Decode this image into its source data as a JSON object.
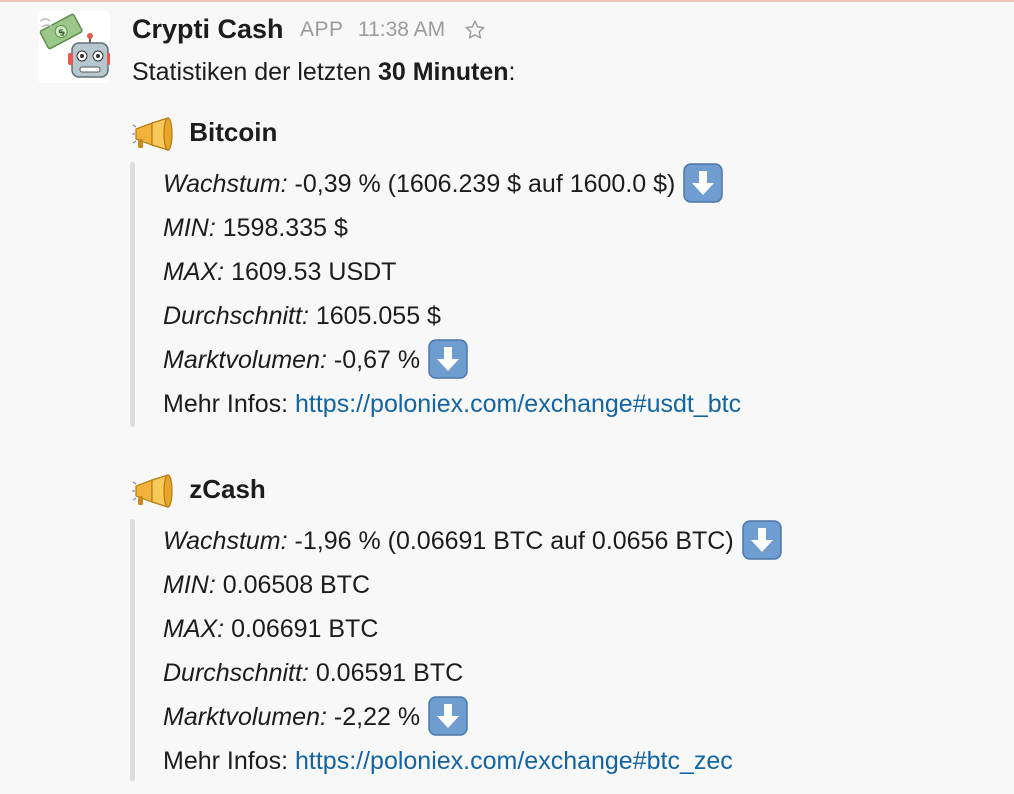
{
  "message": {
    "sender": "Crypti Cash",
    "badge": "APP",
    "time": "11:38 AM",
    "intro_prefix": "Statistiken der letzten ",
    "intro_bold": "30 Minuten",
    "intro_suffix": ":"
  },
  "icons": {
    "avatar": "money-robot-icon",
    "star": "star-outline-icon",
    "megaphone": "megaphone-icon",
    "down_arrow": "down-arrow-icon"
  },
  "colors": {
    "link": "#1264a3",
    "attachment_bar": "#dddddd",
    "arrow_bg": "#6f9dcf"
  },
  "coins": [
    {
      "name": "Bitcoin",
      "growth_label": "Wachstum:",
      "growth_value": " -0,39 % (1606.239 $ auf 1600.0 $)",
      "min_label": "MIN:",
      "min_value": " 1598.335 $",
      "max_label": "MAX:",
      "max_value": " 1609.53 USDT",
      "avg_label": "Durchschnitt:",
      "avg_value": " 1605.055 $",
      "vol_label": "Marktvolumen:",
      "vol_value": " -0,67 %",
      "more_label": "Mehr Infos: ",
      "link": "https://poloniex.com/exchange#usdt_btc"
    },
    {
      "name": "zCash",
      "growth_label": "Wachstum:",
      "growth_value": " -1,96 % (0.06691 BTC auf 0.0656 BTC)",
      "min_label": "MIN:",
      "min_value": " 0.06508 BTC",
      "max_label": "MAX:",
      "max_value": " 0.06691 BTC",
      "avg_label": "Durchschnitt:",
      "avg_value": " 0.06591 BTC",
      "vol_label": "Marktvolumen:",
      "vol_value": " -2,22 %",
      "more_label": "Mehr Infos: ",
      "link": "https://poloniex.com/exchange#btc_zec"
    }
  ]
}
